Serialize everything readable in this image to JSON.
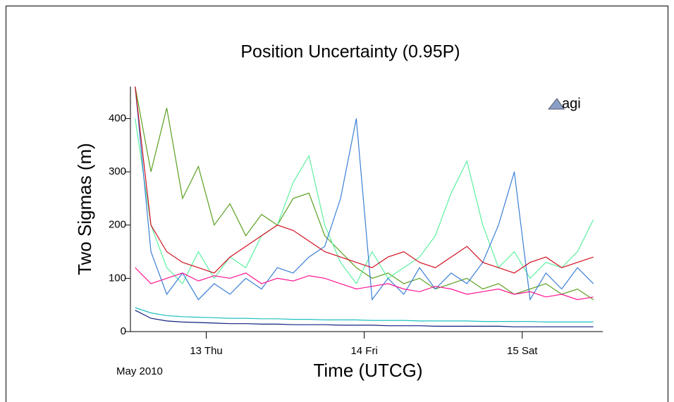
{
  "chart_data": {
    "type": "line",
    "title": "Position Uncertainty (0.95P)",
    "xlabel": "Time (UTCG)",
    "ylabel": "Two Sigmas (m)",
    "annotation": "May 2010",
    "logo": "agi",
    "xlim": [
      12.52,
      15.51
    ],
    "xticks": [
      {
        "value": 13,
        "label": "13 Thu"
      },
      {
        "value": 14,
        "label": "14 Fri"
      },
      {
        "value": 15,
        "label": "15 Sat"
      }
    ],
    "ylim": [
      0,
      460
    ],
    "yticks": [
      0,
      100,
      200,
      300,
      400
    ],
    "x": [
      12.55,
      12.65,
      12.75,
      12.85,
      12.95,
      13.05,
      13.15,
      13.25,
      13.35,
      13.45,
      13.55,
      13.65,
      13.75,
      13.85,
      13.95,
      14.05,
      14.15,
      14.25,
      14.35,
      14.45,
      14.55,
      14.65,
      14.75,
      14.85,
      14.95,
      15.05,
      15.15,
      15.25,
      15.35,
      15.45
    ],
    "series": [
      {
        "color": "#5aa020",
        "values": [
          460,
          300,
          420,
          250,
          310,
          200,
          240,
          180,
          220,
          200,
          250,
          260,
          180,
          150,
          120,
          100,
          110,
          90,
          100,
          80,
          90,
          100,
          80,
          90,
          70,
          80,
          90,
          70,
          80,
          60
        ]
      },
      {
        "color": "#5cf0a0",
        "values": [
          400,
          200,
          120,
          90,
          150,
          100,
          140,
          120,
          180,
          200,
          280,
          330,
          200,
          130,
          90,
          150,
          100,
          120,
          140,
          180,
          260,
          320,
          200,
          120,
          150,
          100,
          130,
          120,
          150,
          210
        ]
      },
      {
        "color": "#3a7fd5",
        "values": [
          460,
          150,
          70,
          110,
          60,
          90,
          70,
          100,
          80,
          120,
          110,
          140,
          160,
          250,
          400,
          60,
          100,
          70,
          120,
          80,
          110,
          90,
          130,
          200,
          300,
          60,
          110,
          80,
          120,
          90
        ]
      },
      {
        "color": "#d01020",
        "values": [
          460,
          200,
          150,
          130,
          120,
          110,
          140,
          160,
          180,
          200,
          190,
          170,
          150,
          140,
          130,
          120,
          140,
          150,
          130,
          120,
          140,
          160,
          130,
          120,
          110,
          130,
          140,
          120,
          130,
          140
        ]
      },
      {
        "color": "#ff1493",
        "values": [
          120,
          90,
          100,
          110,
          95,
          105,
          100,
          110,
          90,
          100,
          95,
          105,
          100,
          90,
          80,
          85,
          90,
          80,
          75,
          85,
          80,
          70,
          75,
          80,
          70,
          75,
          65,
          70,
          60,
          65
        ]
      },
      {
        "color": "#20c0c0",
        "values": [
          45,
          35,
          30,
          28,
          27,
          26,
          25,
          25,
          24,
          24,
          23,
          23,
          22,
          22,
          22,
          21,
          21,
          21,
          20,
          20,
          20,
          20,
          19,
          19,
          19,
          19,
          18,
          18,
          18,
          18
        ]
      },
      {
        "color": "#102080",
        "values": [
          40,
          25,
          20,
          18,
          17,
          16,
          15,
          15,
          14,
          14,
          13,
          13,
          13,
          12,
          12,
          12,
          11,
          11,
          11,
          10,
          10,
          10,
          10,
          10,
          9,
          9,
          9,
          9,
          9,
          9
        ]
      }
    ]
  }
}
